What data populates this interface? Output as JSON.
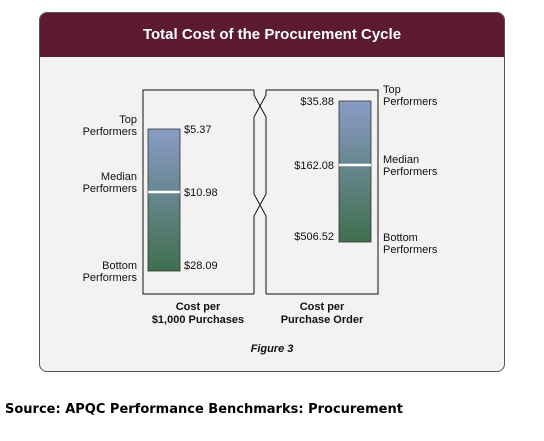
{
  "colors": {
    "title_bar": "#5b1a2d",
    "title_text": "#ffffff",
    "panel_background": "#f2f2f2",
    "bar_top_color": "#8a9bc6",
    "bar_bottom_color": "#3f6f4e",
    "median_line": "#ffffff"
  },
  "chart_data": {
    "type": "bar",
    "title": "Total Cost of the Procurement Cycle",
    "figure_label": "Figure 3",
    "tier_labels": {
      "top": [
        "Top",
        "Performers"
      ],
      "median": [
        "Median",
        "Performers"
      ],
      "bottom": [
        "Bottom",
        "Performers"
      ]
    },
    "series": [
      {
        "category": [
          "Cost per",
          "$1,000 Purchases"
        ],
        "top": 5.37,
        "median": 10.98,
        "bottom": 28.09,
        "top_label": "$5.37",
        "median_label": "$10.98",
        "bottom_label": "$28.09"
      },
      {
        "category": [
          "Cost per",
          "Purchase Order"
        ],
        "top": 35.88,
        "median": 162.08,
        "bottom": 506.52,
        "top_label": "$35.88",
        "median_label": "$162.08",
        "bottom_label": "$506.52"
      }
    ]
  },
  "source": "Source: APQC Performance Benchmarks: Procurement"
}
